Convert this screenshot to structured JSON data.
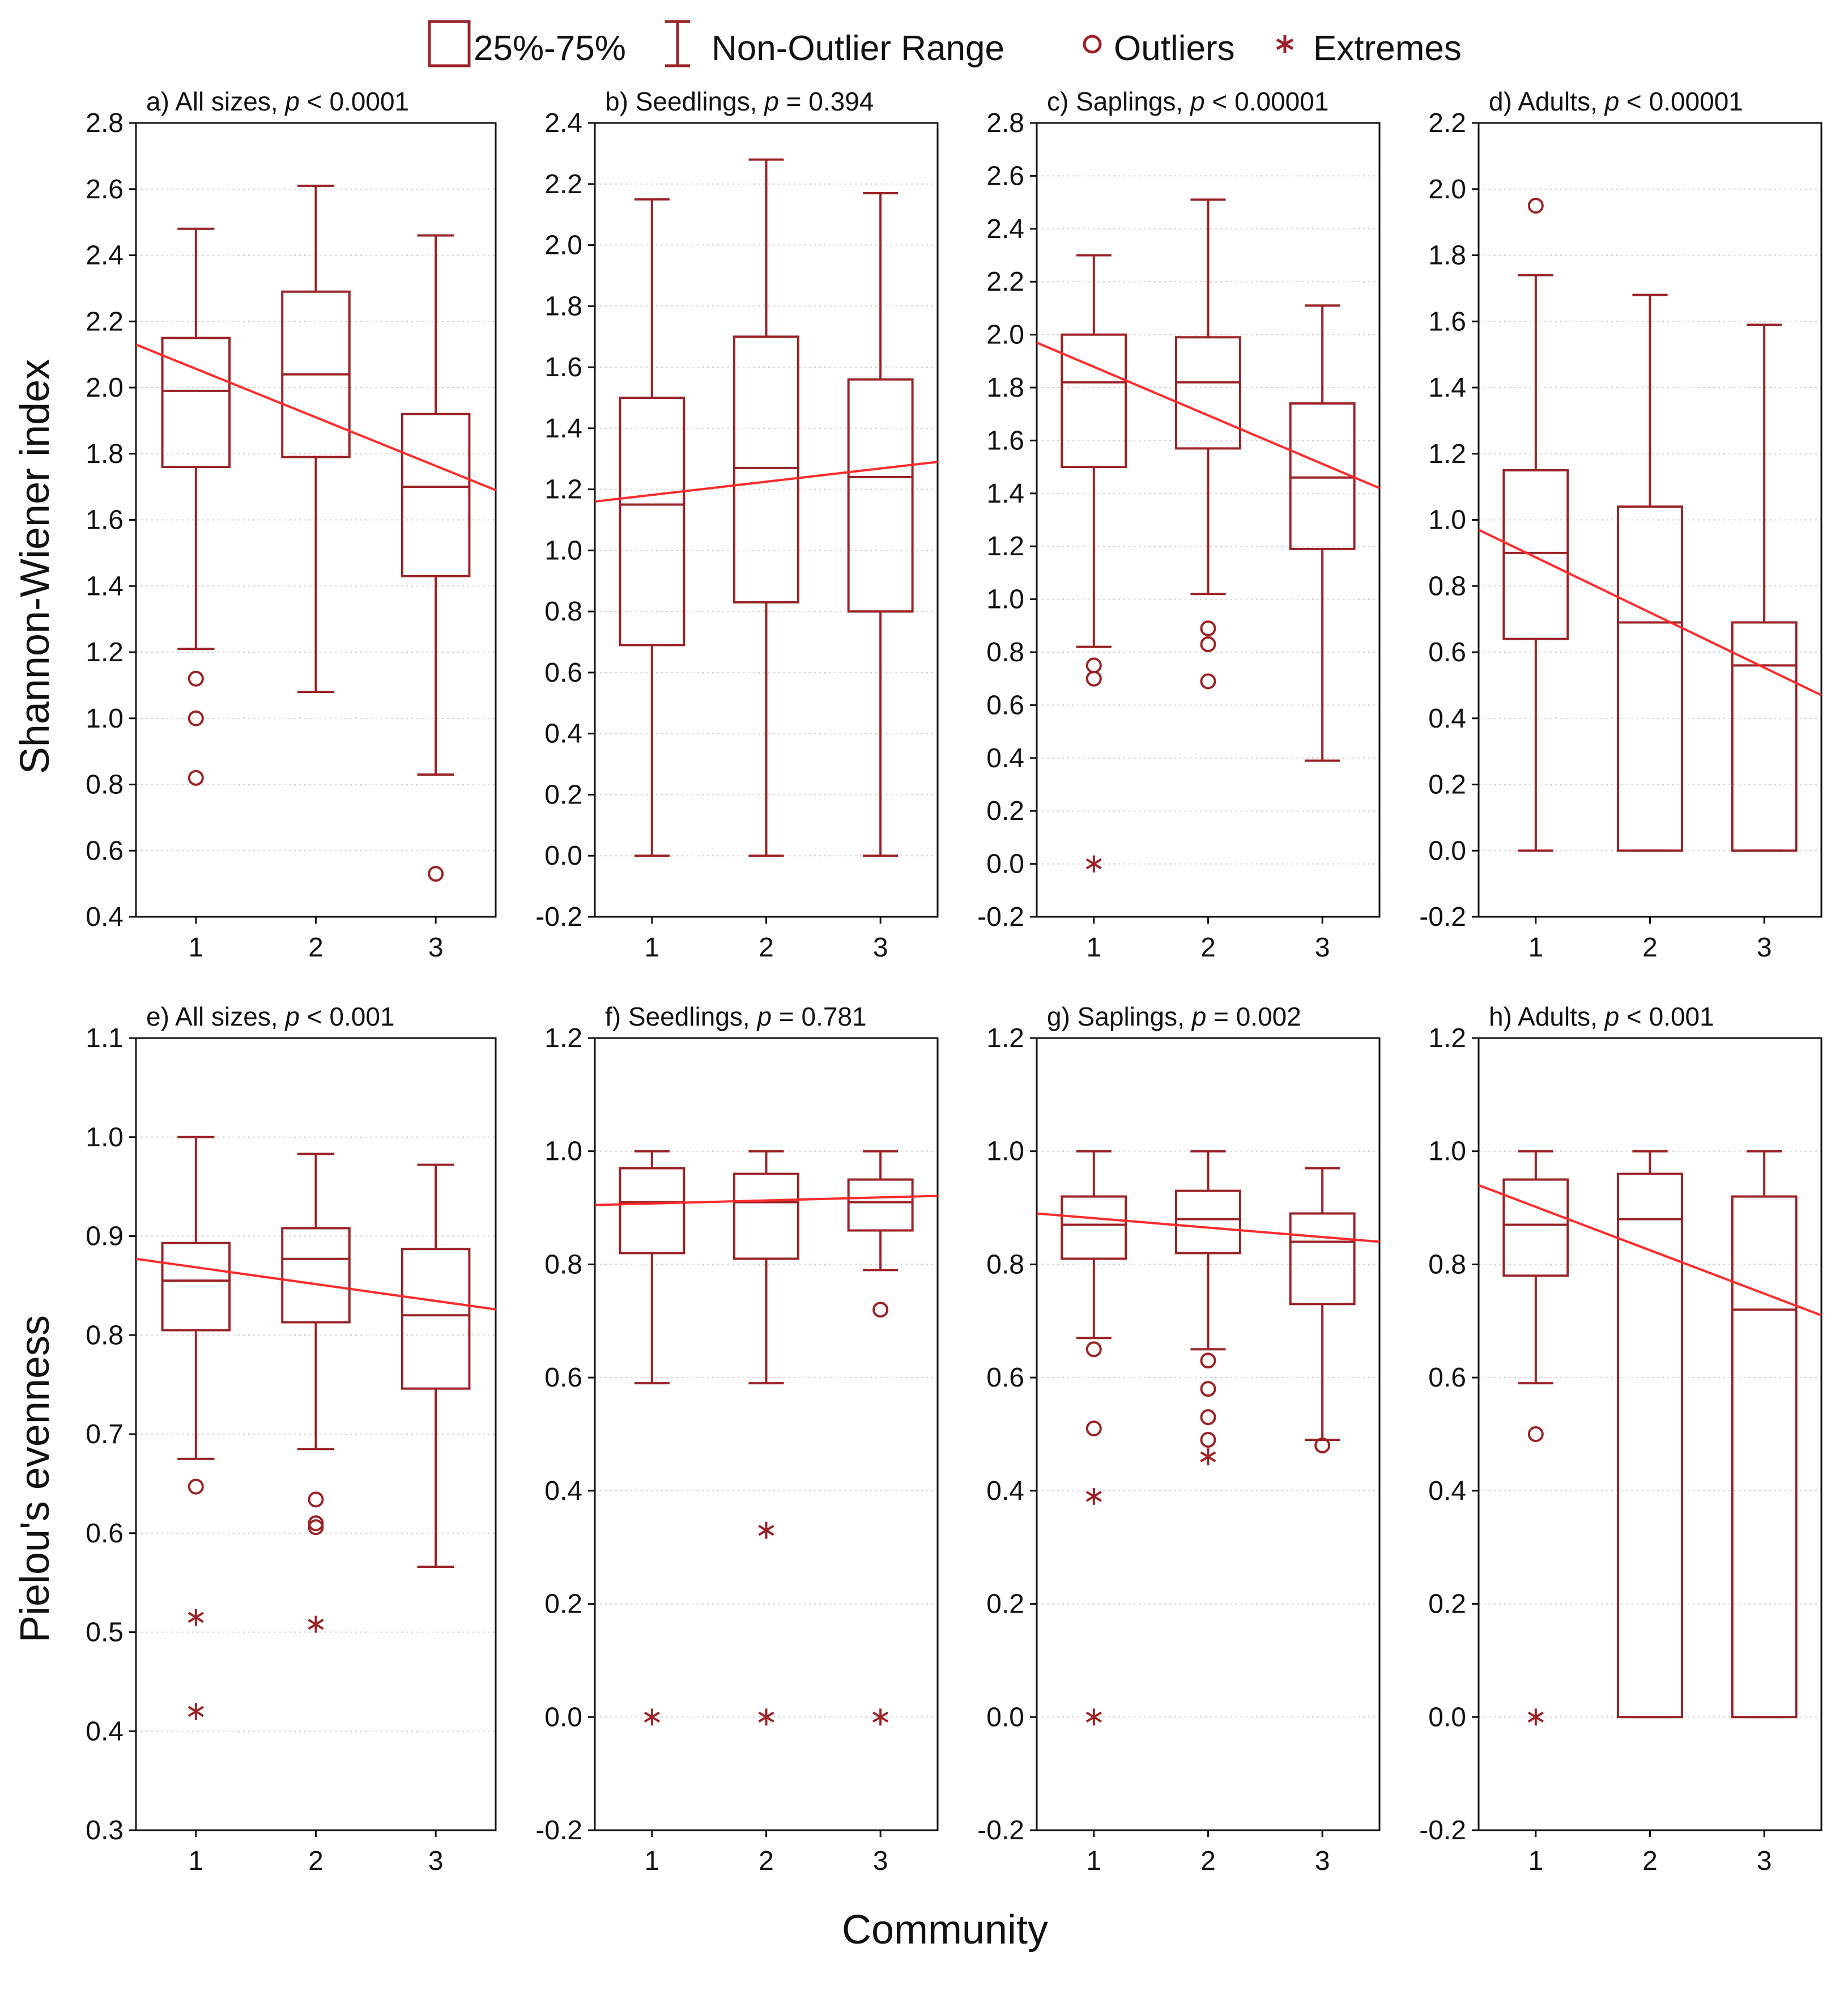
{
  "colors": {
    "box": "#9b2226",
    "trend": "#ff2a2a",
    "grid": "#cfcfcf",
    "axis": "#111111"
  },
  "legend": {
    "box_label": "25%-75%",
    "whisker_label": "Non-Outlier Range",
    "outlier_label": "Outliers",
    "extreme_label": "Extremes"
  },
  "x_axis_label": "Community",
  "row_ylabels": [
    "Shannon-Wiener index",
    "Pielou's evenness"
  ],
  "chart_data": [
    {
      "type": "box",
      "row": 0,
      "col": 0,
      "title_prefix": "a) All sizes, ",
      "p_text": "p < 0.0001",
      "ylabel": "Shannon-Wiener index",
      "ylim": [
        0.4,
        2.8
      ],
      "yticks": [
        "0.4",
        "0.6",
        "0.8",
        "1.0",
        "1.2",
        "1.4",
        "1.6",
        "1.8",
        "2.0",
        "2.2",
        "2.4",
        "2.6",
        "2.8"
      ],
      "categories": [
        "1",
        "2",
        "3"
      ],
      "boxes": [
        {
          "whisker_low": 1.21,
          "q1": 1.76,
          "median": 1.99,
          "q3": 2.15,
          "whisker_high": 2.48,
          "outliers": [
            1.12,
            1.0,
            0.82
          ],
          "extremes": []
        },
        {
          "whisker_low": 1.08,
          "q1": 1.79,
          "median": 2.04,
          "q3": 2.29,
          "whisker_high": 2.61,
          "outliers": [],
          "extremes": []
        },
        {
          "whisker_low": 0.83,
          "q1": 1.43,
          "median": 1.7,
          "q3": 1.92,
          "whisker_high": 2.46,
          "outliers": [
            0.53
          ],
          "extremes": []
        }
      ],
      "trend": {
        "x": [
          0.5,
          3.5
        ],
        "y": [
          2.13,
          1.69
        ]
      }
    },
    {
      "type": "box",
      "row": 0,
      "col": 1,
      "title_prefix": "b) Seedlings, ",
      "p_text": "p = 0.394",
      "ylim": [
        -0.2,
        2.4
      ],
      "yticks": [
        "-0.2",
        "0.0",
        "0.2",
        "0.4",
        "0.6",
        "0.8",
        "1.0",
        "1.2",
        "1.4",
        "1.6",
        "1.8",
        "2.0",
        "2.2",
        "2.4"
      ],
      "categories": [
        "1",
        "2",
        "3"
      ],
      "boxes": [
        {
          "whisker_low": 0.0,
          "q1": 0.69,
          "median": 1.15,
          "q3": 1.5,
          "whisker_high": 2.15,
          "outliers": [],
          "extremes": []
        },
        {
          "whisker_low": 0.0,
          "q1": 0.83,
          "median": 1.27,
          "q3": 1.7,
          "whisker_high": 2.28,
          "outliers": [],
          "extremes": []
        },
        {
          "whisker_low": 0.0,
          "q1": 0.8,
          "median": 1.24,
          "q3": 1.56,
          "whisker_high": 2.17,
          "outliers": [],
          "extremes": []
        }
      ],
      "trend": {
        "x": [
          0.5,
          3.5
        ],
        "y": [
          1.16,
          1.29
        ]
      }
    },
    {
      "type": "box",
      "row": 0,
      "col": 2,
      "title_prefix": "c) Saplings, ",
      "p_text": "p < 0.00001",
      "ylim": [
        -0.2,
        2.8
      ],
      "yticks": [
        "-0.2",
        "0.0",
        "0.2",
        "0.4",
        "0.6",
        "0.8",
        "1.0",
        "1.2",
        "1.4",
        "1.6",
        "1.8",
        "2.0",
        "2.2",
        "2.4",
        "2.6",
        "2.8"
      ],
      "categories": [
        "1",
        "2",
        "3"
      ],
      "boxes": [
        {
          "whisker_low": 0.82,
          "q1": 1.5,
          "median": 1.82,
          "q3": 2.0,
          "whisker_high": 2.3,
          "outliers": [
            0.75,
            0.7
          ],
          "extremes": [
            0.0
          ]
        },
        {
          "whisker_low": 1.02,
          "q1": 1.57,
          "median": 1.82,
          "q3": 1.99,
          "whisker_high": 2.51,
          "outliers": [
            0.89,
            0.83,
            0.69
          ],
          "extremes": []
        },
        {
          "whisker_low": 0.39,
          "q1": 1.19,
          "median": 1.46,
          "q3": 1.74,
          "whisker_high": 2.11,
          "outliers": [],
          "extremes": []
        }
      ],
      "trend": {
        "x": [
          0.5,
          3.5
        ],
        "y": [
          1.97,
          1.42
        ]
      }
    },
    {
      "type": "box",
      "row": 0,
      "col": 3,
      "title_prefix": "d) Adults, ",
      "p_text": "p < 0.00001",
      "ylim": [
        -0.2,
        2.2
      ],
      "yticks": [
        "-0.2",
        "0.0",
        "0.2",
        "0.4",
        "0.6",
        "0.8",
        "1.0",
        "1.2",
        "1.4",
        "1.6",
        "1.8",
        "2.0",
        "2.2"
      ],
      "categories": [
        "1",
        "2",
        "3"
      ],
      "boxes": [
        {
          "whisker_low": 0.0,
          "q1": 0.64,
          "median": 0.9,
          "q3": 1.15,
          "whisker_high": 1.74,
          "outliers": [
            1.95
          ],
          "extremes": []
        },
        {
          "whisker_low": 0.0,
          "q1": 0.0,
          "median": 0.69,
          "q3": 1.04,
          "whisker_high": 1.68,
          "outliers": [],
          "extremes": []
        },
        {
          "whisker_low": 0.0,
          "q1": 0.0,
          "median": 0.56,
          "q3": 0.69,
          "whisker_high": 1.59,
          "outliers": [],
          "extremes": []
        }
      ],
      "trend": {
        "x": [
          0.5,
          3.5
        ],
        "y": [
          0.97,
          0.47
        ]
      }
    },
    {
      "type": "box",
      "row": 1,
      "col": 0,
      "title_prefix": "e) All sizes, ",
      "p_text": "p < 0.001",
      "ylabel": "Pielou's evenness",
      "ylim": [
        0.3,
        1.1
      ],
      "yticks": [
        "0.3",
        "0.4",
        "0.5",
        "0.6",
        "0.7",
        "0.8",
        "0.9",
        "1.0",
        "1.1"
      ],
      "categories": [
        "1",
        "2",
        "3"
      ],
      "boxes": [
        {
          "whisker_low": 0.675,
          "q1": 0.805,
          "median": 0.855,
          "q3": 0.893,
          "whisker_high": 1.0,
          "outliers": [
            0.647
          ],
          "extremes": [
            0.515,
            0.42
          ]
        },
        {
          "whisker_low": 0.685,
          "q1": 0.813,
          "median": 0.877,
          "q3": 0.908,
          "whisker_high": 0.983,
          "outliers": [
            0.634,
            0.61,
            0.606
          ],
          "extremes": [
            0.508
          ]
        },
        {
          "whisker_low": 0.566,
          "q1": 0.746,
          "median": 0.82,
          "q3": 0.887,
          "whisker_high": 0.972,
          "outliers": [],
          "extremes": []
        }
      ],
      "trend": {
        "x": [
          0.5,
          3.5
        ],
        "y": [
          0.877,
          0.826
        ]
      }
    },
    {
      "type": "box",
      "row": 1,
      "col": 1,
      "title_prefix": "f) Seedlings, ",
      "p_text": "p = 0.781",
      "ylim": [
        -0.2,
        1.2
      ],
      "yticks": [
        "-0.2",
        "0.0",
        "0.2",
        "0.4",
        "0.6",
        "0.8",
        "1.0",
        "1.2"
      ],
      "categories": [
        "1",
        "2",
        "3"
      ],
      "boxes": [
        {
          "whisker_low": 0.59,
          "q1": 0.82,
          "median": 0.91,
          "q3": 0.97,
          "whisker_high": 1.0,
          "outliers": [],
          "extremes": [
            0.0
          ]
        },
        {
          "whisker_low": 0.59,
          "q1": 0.81,
          "median": 0.91,
          "q3": 0.96,
          "whisker_high": 1.0,
          "outliers": [],
          "extremes": [
            0.33,
            0.0
          ]
        },
        {
          "whisker_low": 0.79,
          "q1": 0.86,
          "median": 0.91,
          "q3": 0.95,
          "whisker_high": 1.0,
          "outliers": [
            0.72
          ],
          "extremes": [
            0.0
          ]
        }
      ],
      "trend": {
        "x": [
          0.5,
          3.5
        ],
        "y": [
          0.905,
          0.921
        ]
      }
    },
    {
      "type": "box",
      "row": 1,
      "col": 2,
      "title_prefix": "g) Saplings, ",
      "p_text": "p = 0.002",
      "ylim": [
        -0.2,
        1.2
      ],
      "yticks": [
        "-0.2",
        "0.0",
        "0.2",
        "0.4",
        "0.6",
        "0.8",
        "1.0",
        "1.2"
      ],
      "categories": [
        "1",
        "2",
        "3"
      ],
      "boxes": [
        {
          "whisker_low": 0.67,
          "q1": 0.81,
          "median": 0.87,
          "q3": 0.92,
          "whisker_high": 1.0,
          "outliers": [
            0.65,
            0.51
          ],
          "extremes": [
            0.39,
            0.0
          ]
        },
        {
          "whisker_low": 0.65,
          "q1": 0.82,
          "median": 0.88,
          "q3": 0.93,
          "whisker_high": 1.0,
          "outliers": [
            0.63,
            0.58,
            0.53,
            0.49
          ],
          "extremes": [
            0.46
          ]
        },
        {
          "whisker_low": 0.49,
          "q1": 0.73,
          "median": 0.84,
          "q3": 0.89,
          "whisker_high": 0.97,
          "outliers": [
            0.48
          ],
          "extremes": []
        }
      ],
      "trend": {
        "x": [
          0.5,
          3.5
        ],
        "y": [
          0.89,
          0.84
        ]
      }
    },
    {
      "type": "box",
      "row": 1,
      "col": 3,
      "title_prefix": "h) Adults, ",
      "p_text": "p < 0.001",
      "ylim": [
        -0.2,
        1.2
      ],
      "yticks": [
        "-0.2",
        "0.0",
        "0.2",
        "0.4",
        "0.6",
        "0.8",
        "1.0",
        "1.2"
      ],
      "categories": [
        "1",
        "2",
        "3"
      ],
      "boxes": [
        {
          "whisker_low": 0.59,
          "q1": 0.78,
          "median": 0.87,
          "q3": 0.95,
          "whisker_high": 1.0,
          "outliers": [
            0.5
          ],
          "extremes": [
            0.0
          ]
        },
        {
          "whisker_low": 0.0,
          "q1": 0.0,
          "median": 0.88,
          "q3": 0.96,
          "whisker_high": 1.0,
          "outliers": [],
          "extremes": []
        },
        {
          "whisker_low": 0.0,
          "q1": 0.0,
          "median": 0.72,
          "q3": 0.92,
          "whisker_high": 1.0,
          "outliers": [],
          "extremes": []
        }
      ],
      "trend": {
        "x": [
          0.5,
          3.5
        ],
        "y": [
          0.94,
          0.71
        ]
      }
    }
  ]
}
